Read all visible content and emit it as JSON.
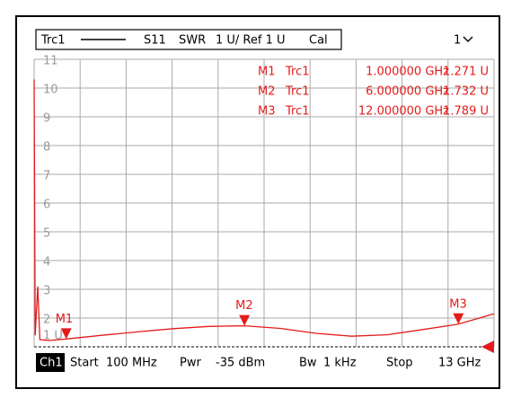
{
  "header": {
    "trace": "Trc1",
    "parameter": "S11",
    "format": "SWR",
    "scale": "1 U/ Ref 1 U",
    "cal": "Cal",
    "channel_menu": "1"
  },
  "markers": [
    {
      "name": "M1",
      "trace": "Trc1",
      "x": 1,
      "x_label": "1.000000 GHz",
      "value": 1.271,
      "value_label": "1.271 U"
    },
    {
      "name": "M2",
      "trace": "Trc1",
      "x": 6,
      "x_label": "6.000000 GHz",
      "value": 1.732,
      "value_label": "1.732 U"
    },
    {
      "name": "M3",
      "trace": "Trc1",
      "x": 12,
      "x_label": "12.000000 GHz",
      "value": 1.789,
      "value_label": "1.789 U"
    }
  ],
  "plot": {
    "xlim": [
      0.1,
      13
    ],
    "ylim": [
      1,
      11
    ],
    "yticks": [
      11,
      10,
      9,
      8,
      7,
      6,
      5,
      4,
      3,
      2,
      {
        "value": 1,
        "label": "1 U"
      }
    ],
    "x": [
      0.1,
      0.13,
      0.2,
      0.26,
      0.5,
      1,
      2,
      3,
      4,
      5,
      6,
      7,
      8,
      9,
      10,
      11,
      12,
      13
    ],
    "values": [
      10.3,
      1.4,
      3.1,
      1.25,
      1.22,
      1.271,
      1.4,
      1.52,
      1.63,
      1.71,
      1.732,
      1.64,
      1.47,
      1.37,
      1.42,
      1.6,
      1.789,
      2.15
    ],
    "color": "#e41b1b"
  },
  "footer": {
    "channel": "Ch1",
    "start_label": "Start",
    "start": "100 MHz",
    "power_label": "Pwr",
    "power": "-35 dBm",
    "bw_label": "Bw",
    "bw": "1 kHz",
    "stop_label": "Stop",
    "stop": "13 GHz"
  }
}
